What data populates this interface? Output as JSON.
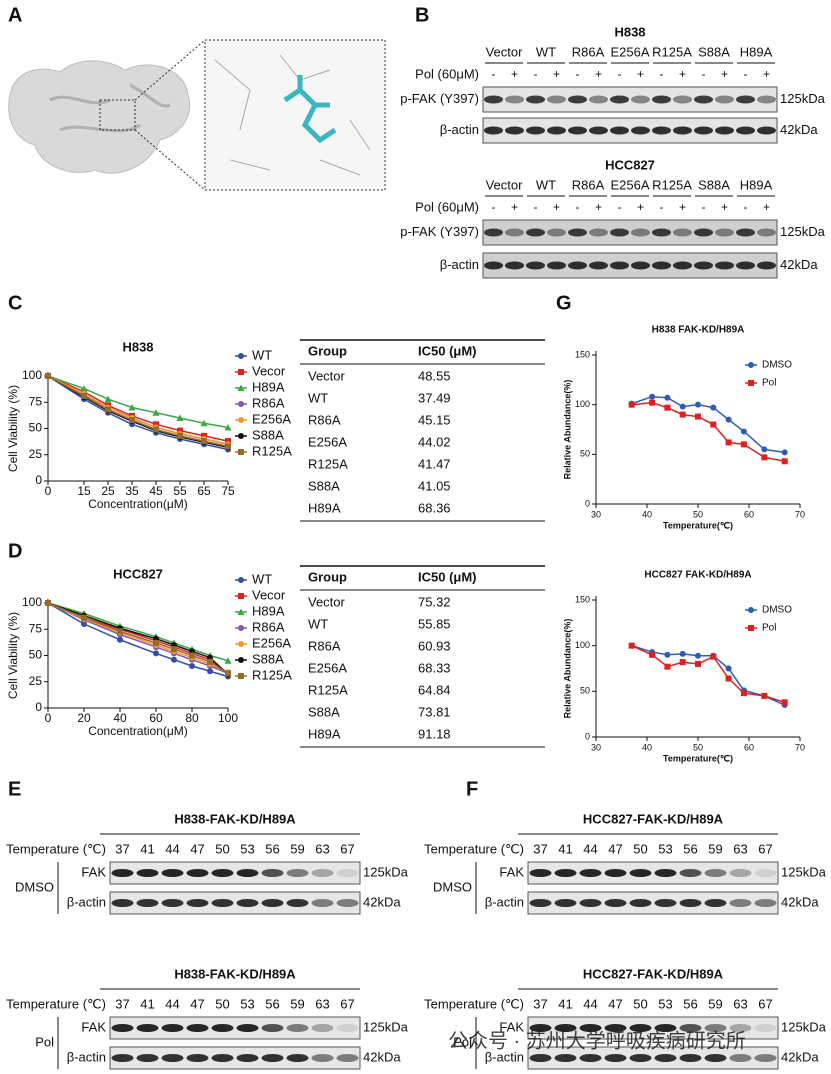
{
  "panel_labels": [
    "A",
    "B",
    "C",
    "D",
    "E",
    "F",
    "G"
  ],
  "chart_data": [
    {
      "type": "line",
      "title": "H838",
      "xlabel": "Concentration(μM)",
      "ylabel": "Cell Viability (%)",
      "x": [
        0,
        15,
        25,
        35,
        45,
        55,
        65,
        75
      ],
      "xlim": [
        0,
        75
      ],
      "xticks": [
        0,
        15,
        25,
        35,
        45,
        55,
        65,
        75
      ],
      "ylim": [
        0,
        100
      ],
      "yticks": [
        0,
        25,
        50,
        75,
        100
      ],
      "legend": "outside right",
      "series": [
        {
          "name": "WT",
          "color": "#2f4fa8",
          "marker": "circle",
          "values": [
            100,
            78,
            65,
            54,
            46,
            40,
            35,
            30
          ]
        },
        {
          "name": "Vecor",
          "color": "#e02020",
          "marker": "square",
          "values": [
            100,
            85,
            72,
            62,
            54,
            48,
            43,
            38
          ]
        },
        {
          "name": "H89A",
          "color": "#3aa845",
          "marker": "triangle",
          "values": [
            100,
            88,
            78,
            70,
            65,
            60,
            55,
            51
          ]
        },
        {
          "name": "R86A",
          "color": "#8a55b0",
          "marker": "circle",
          "values": [
            100,
            82,
            70,
            60,
            51,
            45,
            40,
            35
          ]
        },
        {
          "name": "E256A",
          "color": "#f29a2e",
          "marker": "circle",
          "values": [
            100,
            83,
            70,
            60,
            51,
            45,
            40,
            35
          ]
        },
        {
          "name": "S88A",
          "color": "#111111",
          "marker": "circle",
          "values": [
            100,
            80,
            67,
            57,
            48,
            42,
            37,
            32
          ]
        },
        {
          "name": "R125A",
          "color": "#9a6a2a",
          "marker": "square",
          "values": [
            100,
            81,
            68,
            58,
            49,
            43,
            38,
            33
          ]
        }
      ]
    },
    {
      "type": "line",
      "title": "HCC827",
      "xlabel": "Concentration(μM)",
      "ylabel": "Cell Viability (%)",
      "x": [
        0,
        20,
        40,
        60,
        70,
        80,
        90,
        100
      ],
      "xlim": [
        0,
        100
      ],
      "xticks": [
        0,
        20,
        40,
        60,
        80,
        100
      ],
      "ylim": [
        0,
        100
      ],
      "yticks": [
        0,
        25,
        50,
        75,
        100
      ],
      "legend": "outside right",
      "series": [
        {
          "name": "WT",
          "color": "#2f4fa8",
          "marker": "circle",
          "values": [
            100,
            80,
            65,
            52,
            46,
            40,
            35,
            30
          ]
        },
        {
          "name": "Vecor",
          "color": "#e02020",
          "marker": "square",
          "values": [
            100,
            86,
            75,
            64,
            58,
            52,
            46,
            33
          ]
        },
        {
          "name": "H89A",
          "color": "#3aa845",
          "marker": "triangle",
          "values": [
            100,
            90,
            78,
            68,
            62,
            56,
            50,
            45
          ]
        },
        {
          "name": "R86A",
          "color": "#8a55b0",
          "marker": "circle",
          "values": [
            100,
            84,
            70,
            58,
            52,
            46,
            40,
            33
          ]
        },
        {
          "name": "E256A",
          "color": "#f29a2e",
          "marker": "circle",
          "values": [
            100,
            85,
            72,
            60,
            54,
            48,
            42,
            34
          ]
        },
        {
          "name": "S88A",
          "color": "#111111",
          "marker": "circle",
          "values": [
            100,
            88,
            76,
            66,
            60,
            54,
            48,
            32
          ]
        },
        {
          "name": "R125A",
          "color": "#9a6a2a",
          "marker": "square",
          "values": [
            100,
            86,
            73,
            62,
            56,
            50,
            44,
            33
          ]
        }
      ]
    },
    {
      "type": "line",
      "title": "H838 FAK-KD/H89A",
      "xlabel": "Temperature(℃)",
      "ylabel": "Relative Abundance(%)",
      "x": [
        37,
        41,
        44,
        47,
        50,
        53,
        56,
        59,
        63,
        67
      ],
      "xlim": [
        30,
        70
      ],
      "xticks": [
        30,
        40,
        50,
        60,
        70
      ],
      "ylim": [
        0,
        150
      ],
      "yticks": [
        0,
        50,
        100,
        150
      ],
      "legend": "upper right",
      "series": [
        {
          "name": "DMSO",
          "color": "#2f5bb7",
          "marker": "circle",
          "values": [
            101,
            108,
            107,
            98,
            100,
            97,
            85,
            73,
            55,
            52
          ]
        },
        {
          "name": "Pol",
          "color": "#e02020",
          "marker": "square",
          "values": [
            100,
            102,
            97,
            90,
            88,
            80,
            62,
            60,
            47,
            43
          ]
        }
      ]
    },
    {
      "type": "line",
      "title": "HCC827 FAK-KD/H89A",
      "xlabel": "Temperature(℃)",
      "ylabel": "Relative Abundance(%)",
      "x": [
        37,
        41,
        44,
        47,
        50,
        53,
        56,
        59,
        63,
        67
      ],
      "xlim": [
        30,
        70
      ],
      "xticks": [
        30,
        40,
        50,
        60,
        70
      ],
      "ylim": [
        0,
        150
      ],
      "yticks": [
        0,
        50,
        100,
        150
      ],
      "legend": "upper right",
      "series": [
        {
          "name": "DMSO",
          "color": "#2f5bb7",
          "marker": "circle",
          "values": [
            100,
            93,
            90,
            91,
            89,
            89,
            75,
            51,
            45,
            35
          ]
        },
        {
          "name": "Pol",
          "color": "#e02020",
          "marker": "square",
          "values": [
            100,
            90,
            77,
            82,
            80,
            88,
            64,
            48,
            45,
            38
          ]
        }
      ]
    }
  ],
  "tables": [
    {
      "headers": [
        "Group",
        "IC50 (μM)"
      ],
      "rows": [
        [
          "Vector",
          48.55
        ],
        [
          "WT",
          37.49
        ],
        [
          "R86A",
          45.15
        ],
        [
          "E256A",
          44.02
        ],
        [
          "R125A",
          41.47
        ],
        [
          "S88A",
          41.05
        ],
        [
          "H89A",
          68.36
        ]
      ]
    },
    {
      "headers": [
        "Group",
        "IC50 (μM)"
      ],
      "rows": [
        [
          "Vector",
          75.32
        ],
        [
          "WT",
          55.85
        ],
        [
          "R86A",
          60.93
        ],
        [
          "E256A",
          68.33
        ],
        [
          "R125A",
          64.84
        ],
        [
          "S88A",
          73.81
        ],
        [
          "H89A",
          91.18
        ]
      ]
    }
  ],
  "blots": [
    {
      "title": "H838",
      "groups": [
        "Vector",
        "WT",
        "R86A",
        "E256A",
        "R125A",
        "S88A",
        "H89A"
      ],
      "treatment": "Pol (60μM)",
      "treatment_marks": [
        "-",
        "+"
      ],
      "rows": [
        {
          "label": "p-FAK (Y397)",
          "size": "125kDa"
        },
        {
          "label": "β-actin",
          "size": "42kDa"
        }
      ]
    },
    {
      "title": "HCC827",
      "groups": [
        "Vector",
        "WT",
        "R86A",
        "E256A",
        "R125A",
        "S88A",
        "H89A"
      ],
      "treatment": "Pol (60μM)",
      "treatment_marks": [
        "-",
        "+"
      ],
      "rows": [
        {
          "label": "p-FAK (Y397)",
          "size": "125kDa"
        },
        {
          "label": "β-actin",
          "size": "42kDa"
        }
      ]
    }
  ],
  "cetsa": [
    {
      "title": "H838-FAK-KD/H89A",
      "temperature_label": "Temperature (℃)",
      "temperatures": [
        37,
        41,
        44,
        47,
        50,
        53,
        56,
        59,
        63,
        67
      ],
      "condition": "DMSO",
      "rows": [
        {
          "label": "FAK",
          "size": "125kDa"
        },
        {
          "label": "β-actin",
          "size": "42kDa"
        }
      ]
    },
    {
      "title": "H838-FAK-KD/H89A",
      "temperature_label": "Temperature (℃)",
      "temperatures": [
        37,
        41,
        44,
        47,
        50,
        53,
        56,
        59,
        63,
        67
      ],
      "condition": "Pol",
      "rows": [
        {
          "label": "FAK",
          "size": "125kDa"
        },
        {
          "label": "β-actin",
          "size": "42kDa"
        }
      ]
    },
    {
      "title": "HCC827-FAK-KD/H89A",
      "temperature_label": "Temperature (℃)",
      "temperatures": [
        37,
        41,
        44,
        47,
        50,
        53,
        56,
        59,
        63,
        67
      ],
      "condition": "DMSO",
      "rows": [
        {
          "label": "FAK",
          "size": "125kDa"
        },
        {
          "label": "β-actin",
          "size": "42kDa"
        }
      ]
    },
    {
      "title": "HCC827-FAK-KD/H89A",
      "temperature_label": "Temperature (℃)",
      "temperatures": [
        37,
        41,
        44,
        47,
        50,
        53,
        56,
        59,
        63,
        67
      ],
      "condition": "Pol",
      "rows": [
        {
          "label": "FAK",
          "size": "125kDa"
        },
        {
          "label": "β-actin",
          "size": "42kDa"
        }
      ]
    }
  ],
  "watermark": "公众号 · 苏州大学呼吸疾病研究所"
}
